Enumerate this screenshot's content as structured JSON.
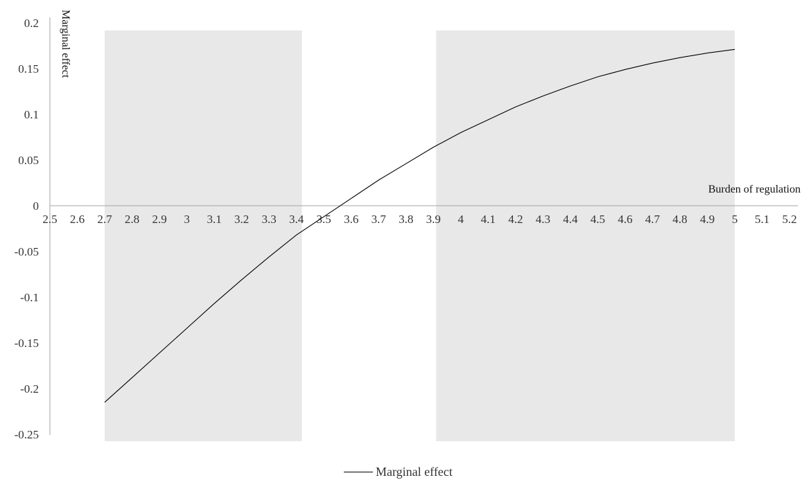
{
  "chart_data": {
    "type": "line",
    "xlabel": "Burden of regulation",
    "ylabel": "Marginal effect",
    "xlim": [
      2.5,
      5.2
    ],
    "ylim": [
      -0.25,
      0.2
    ],
    "x_ticks": [
      "2.5",
      "2.6",
      "2.7",
      "2.8",
      "2.9",
      "3",
      "3.1",
      "3.2",
      "3.3",
      "3.4",
      "3.5",
      "3.6",
      "3.7",
      "3.8",
      "3.9",
      "4",
      "4.1",
      "4.2",
      "4.3",
      "4.4",
      "4.5",
      "4.6",
      "4.7",
      "4.8",
      "4.9",
      "5",
      "5.1",
      "5.2"
    ],
    "y_ticks": [
      "0.2",
      "0.15",
      "0.1",
      "0.05",
      "0",
      "-0.05",
      "-0.1",
      "-0.15",
      "-0.2",
      "-0.25"
    ],
    "shaded_regions": [
      {
        "x_from": 2.7,
        "x_to": 3.42
      },
      {
        "x_from": 3.91,
        "x_to": 5.0
      }
    ],
    "shade_color": "#e8e8e8",
    "line_color": "#000000",
    "axis_color": "#a6a6a6",
    "series": [
      {
        "name": "Marginal effect",
        "x": [
          2.7,
          2.8,
          2.9,
          3.0,
          3.1,
          3.2,
          3.3,
          3.4,
          3.5,
          3.6,
          3.7,
          3.8,
          3.9,
          4.0,
          4.1,
          4.2,
          4.3,
          4.4,
          4.5,
          4.6,
          4.7,
          4.8,
          4.9,
          5.0
        ],
        "y": [
          -0.215,
          -0.188,
          -0.161,
          -0.134,
          -0.107,
          -0.081,
          -0.056,
          -0.032,
          -0.012,
          0.008,
          0.028,
          0.046,
          0.064,
          0.08,
          0.094,
          0.108,
          0.12,
          0.131,
          0.141,
          0.149,
          0.156,
          0.162,
          0.167,
          0.171
        ]
      }
    ],
    "legend_position": "bottom-center",
    "grid": false
  }
}
